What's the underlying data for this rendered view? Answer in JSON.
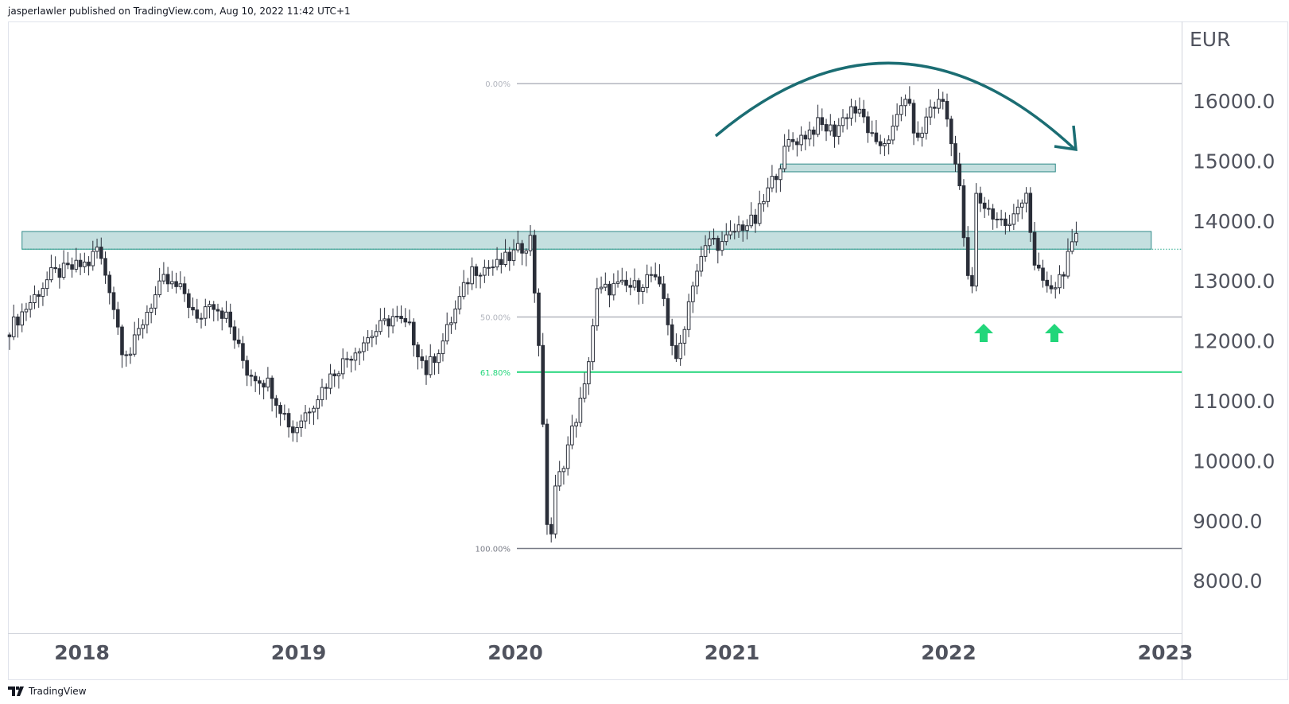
{
  "header": {
    "published": "jasperlawler published on TradingView.com, Aug 10, 2022 11:42 UTC+1"
  },
  "footer": {
    "brand": "TradingView"
  },
  "colors": {
    "up_fill": "#ffffff",
    "down_fill": "#2a2e39",
    "wick": "#2a2e39",
    "zone_fill": "#c4dfdf",
    "zone_border": "#2e8a88",
    "arc": "#1b6d73",
    "fib_grey": "#b2b5be",
    "fib_green": "#22d67a",
    "arrow_green": "#22d67a"
  },
  "chart_data": {
    "type": "candlestick",
    "title": "",
    "currency": "EUR",
    "interval": "weekly",
    "ylim": [
      7300,
      17300
    ],
    "y_ticks": [
      "16000.0",
      "15000.0",
      "14000.0",
      "13000.0",
      "12000.0",
      "11000.0",
      "10000.0",
      "9000.0",
      "8000.0"
    ],
    "y_tick_values": [
      16000,
      15000,
      14000,
      13000,
      12000,
      11000,
      10000,
      9000,
      8000
    ],
    "x_ticks": [
      "2018",
      "2019",
      "2020",
      "2021",
      "2022",
      "2023"
    ],
    "x_tick_weeks": [
      17,
      69,
      121,
      173,
      225,
      277
    ],
    "weekly_close_keypoints": [
      [
        0,
        12200
      ],
      [
        10,
        13100
      ],
      [
        19,
        13300
      ],
      [
        21,
        13550
      ],
      [
        24,
        12900
      ],
      [
        27,
        11900
      ],
      [
        29,
        11800
      ],
      [
        33,
        12500
      ],
      [
        37,
        13000
      ],
      [
        42,
        12800
      ],
      [
        45,
        12300
      ],
      [
        48,
        12700
      ],
      [
        52,
        12400
      ],
      [
        57,
        11500
      ],
      [
        62,
        11300
      ],
      [
        68,
        10500
      ],
      [
        72,
        10900
      ],
      [
        78,
        11500
      ],
      [
        85,
        12000
      ],
      [
        92,
        12400
      ],
      [
        96,
        12200
      ],
      [
        100,
        11500
      ],
      [
        104,
        12000
      ],
      [
        111,
        13200
      ],
      [
        117,
        13250
      ],
      [
        122,
        13500
      ],
      [
        125,
        13700
      ],
      [
        127,
        12000
      ],
      [
        129,
        9000
      ],
      [
        130,
        8800
      ],
      [
        131,
        9500
      ],
      [
        135,
        10500
      ],
      [
        138,
        11200
      ],
      [
        141,
        12800
      ],
      [
        145,
        12900
      ],
      [
        150,
        12900
      ],
      [
        154,
        13100
      ],
      [
        157,
        12700
      ],
      [
        160,
        11600
      ],
      [
        164,
        13000
      ],
      [
        168,
        13700
      ],
      [
        171,
        13600
      ],
      [
        175,
        13900
      ],
      [
        179,
        14000
      ],
      [
        182,
        14500
      ],
      [
        187,
        15300
      ],
      [
        190,
        15400
      ],
      [
        194,
        15600
      ],
      [
        198,
        15500
      ],
      [
        202,
        15900
      ],
      [
        205,
        15700
      ],
      [
        208,
        15200
      ],
      [
        212,
        15500
      ],
      [
        215,
        16100
      ],
      [
        218,
        15300
      ],
      [
        221,
        15900
      ],
      [
        224,
        16000
      ],
      [
        226,
        15400
      ],
      [
        228,
        14500
      ],
      [
        230,
        13000
      ],
      [
        231,
        12900
      ],
      [
        232,
        14400
      ],
      [
        236,
        14100
      ],
      [
        240,
        13900
      ],
      [
        243,
        14400
      ],
      [
        244,
        14500
      ],
      [
        246,
        13200
      ],
      [
        248,
        13000
      ],
      [
        250,
        12800
      ],
      [
        253,
        13200
      ],
      [
        256,
        13700
      ]
    ],
    "fib_levels": [
      {
        "label": "0.00%",
        "price": 16290,
        "color": "#b2b5be"
      },
      {
        "label": "50.00%",
        "price": 12400,
        "color": "#b2b5be"
      },
      {
        "label": "61.80%",
        "price": 11480,
        "color": "#22d67a"
      },
      {
        "label": "100.00%",
        "price": 8540,
        "color": "#787b86"
      }
    ],
    "zones": [
      {
        "name": "resistance-support-zone",
        "from_week": 3,
        "to_week": 274,
        "low": 13530,
        "high": 13825
      },
      {
        "name": "top-support-zone",
        "from_week": 185,
        "to_week": 251,
        "low": 14820,
        "high": 14950
      }
    ],
    "last_price": 13530,
    "annotations": [
      "rounded-top-arc",
      "higher-low-arrow-1",
      "higher-low-arrow-2"
    ]
  }
}
